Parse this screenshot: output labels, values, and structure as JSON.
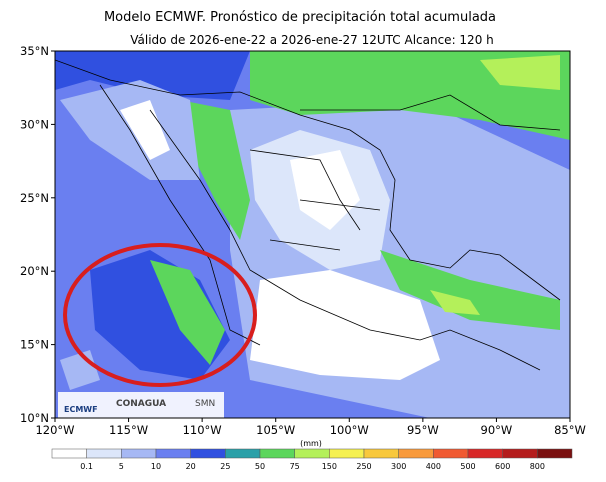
{
  "map": {
    "title": "Modelo ECMWF. Pronóstico de precipitación total acumulada",
    "subtitle": "Válido de 2026-ene-22 a 2026-ene-27 12UTC   Alcance: 120 h",
    "xlim": [
      -120,
      -85
    ],
    "ylim": [
      10,
      35
    ],
    "xticks": [
      {
        "value": -120,
        "label": "120°W"
      },
      {
        "value": -115,
        "label": "115°W"
      },
      {
        "value": -110,
        "label": "110°W"
      },
      {
        "value": -105,
        "label": "105°W"
      },
      {
        "value": -100,
        "label": "100°W"
      },
      {
        "value": -95,
        "label": "95°W"
      },
      {
        "value": -90,
        "label": "90°W"
      },
      {
        "value": -85,
        "label": "85°W"
      }
    ],
    "yticks": [
      {
        "value": 10,
        "label": "10°N"
      },
      {
        "value": 15,
        "label": "15°N"
      },
      {
        "value": 20,
        "label": "20°N"
      },
      {
        "value": 25,
        "label": "25°N"
      },
      {
        "value": 30,
        "label": "30°N"
      },
      {
        "value": 35,
        "label": "35°N"
      }
    ],
    "colorbar": {
      "unit": "(mm)",
      "levels": [
        0.1,
        5,
        10,
        20,
        25,
        50,
        75,
        150,
        250,
        300,
        400,
        500,
        600,
        800
      ],
      "colors": [
        "#ffffff",
        "#dce6fa",
        "#a6b8f4",
        "#6a7ff0",
        "#3050e0",
        "#2aa0a8",
        "#5cd65c",
        "#b4f05a",
        "#f5f050",
        "#f8c83c",
        "#f89a3c",
        "#f05a32",
        "#d82828",
        "#b41c1c",
        "#7a1010"
      ]
    },
    "logos": [
      "ECMWF",
      "CONAGUA",
      "SMN"
    ]
  }
}
